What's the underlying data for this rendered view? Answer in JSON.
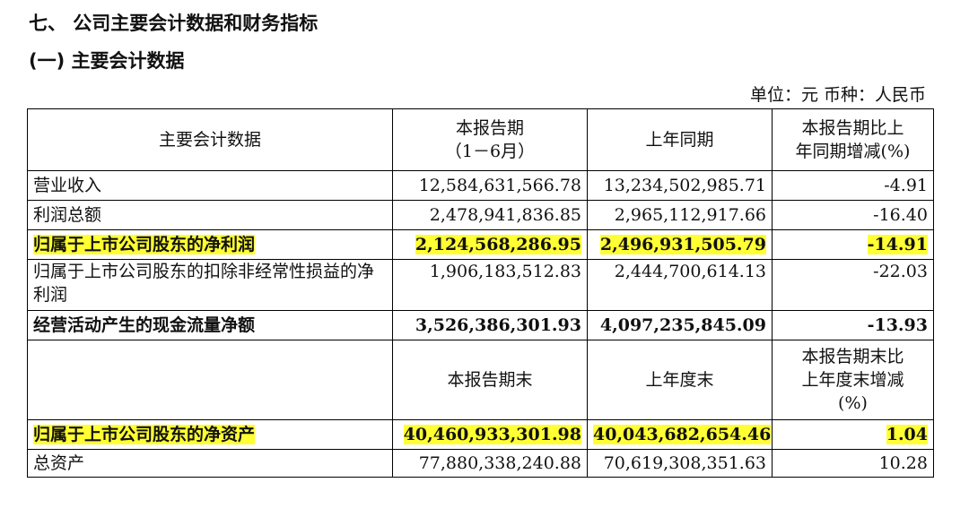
{
  "heading1": "七、 公司主要会计数据和财务指标",
  "heading2": "(一) 主要会计数据",
  "unit_line": "单位：元   币种：人民币",
  "table": {
    "header": {
      "col1": "主要会计数据",
      "col2_line1": "本报告期",
      "col2_line2": "（1－6月）",
      "col3": "上年同期",
      "col4_line1": "本报告期比上",
      "col4_line2": "年同期增减(%)"
    },
    "rows": [
      {
        "label": "营业收入",
        "current": "12,584,631,566.78",
        "prior": "13,234,502,985.71",
        "change": "-4.91"
      },
      {
        "label": "利润总额",
        "current": "2,478,941,836.85",
        "prior": "2,965,112,917.66",
        "change": "-16.40"
      },
      {
        "label": "归属于上市公司股东的净利润",
        "current": "2,124,568,286.95",
        "prior": "2,496,931,505.79",
        "change": "-14.91"
      },
      {
        "label": "归属于上市公司股东的扣除非经常性损益的净利润",
        "current": "1,906,183,512.83",
        "prior": "2,444,700,614.13",
        "change": "-22.03"
      },
      {
        "label": "经营活动产生的现金流量净额",
        "current": "3,526,386,301.93",
        "prior": "4,097,235,845.09",
        "change": "-13.93"
      }
    ],
    "header2": {
      "col1": "",
      "col2": "本报告期末",
      "col3": "上年度末",
      "col4_line1": "本报告期末比",
      "col4_line2": "上年度末增减",
      "col4_line3": "(%)"
    },
    "rows2": [
      {
        "label": "归属于上市公司股东的净资产",
        "current": "40,460,933,301.98",
        "prior": "40,043,682,654.46",
        "change": "1.04"
      },
      {
        "label": "总资产",
        "current": "77,880,338,240.88",
        "prior": "70,619,308,351.63",
        "change": "10.28"
      }
    ]
  }
}
